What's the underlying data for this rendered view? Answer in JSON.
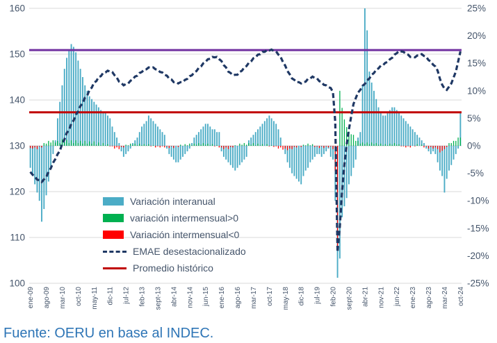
{
  "footer": {
    "text": "Fuente: OERU en base al INDEC."
  },
  "colors": {
    "interanual": "#4BACC6",
    "intermensual_pos": "#00B050",
    "intermensual_neg": "#FF0000",
    "emae_line": "#1F3864",
    "promedio_line": "#C00000",
    "purple_line": "#7030A0",
    "axis_text": "#44546A",
    "gridline": "#D9D9D9",
    "footer_text": "#2E75B6"
  },
  "legend": {
    "items": [
      {
        "label": "Variación interanual",
        "swatch": "bar-blue"
      },
      {
        "label": "variación intermensual>0",
        "swatch": "bar-green"
      },
      {
        "label": "Variación intermensual<0",
        "swatch": "bar-red"
      },
      {
        "label": "EMAE desestacionalizado",
        "swatch": "dashed-navy-line"
      },
      {
        "label": "Promedio histórico",
        "swatch": "solid-darkred-line"
      }
    ]
  },
  "chart_data": {
    "type": "bar",
    "subtype": "combo dual-axis: monthly bars (% right axis) + dashed index line (left axis)",
    "x_unit": "month",
    "n_months": 190,
    "x_range": "ene-09 .. oct-24",
    "x_tick_step": 7,
    "x_tick_labels": [
      "ene-09",
      "ago-09",
      "mar-10",
      "oct-10",
      "may-11",
      "dic-11",
      "jul-12",
      "feb-13",
      "sept-13",
      "abr-14",
      "nov-14",
      "jun-15",
      "ene-16",
      "ago-16",
      "mar-17",
      "oct-17",
      "may-18",
      "dic-18",
      "jul-19",
      "feb-20",
      "sept-20",
      "abr-21",
      "nov-21",
      "jun-22",
      "ene-23",
      "ago-23",
      "mar-24",
      "oct-24"
    ],
    "left_axis": {
      "min": 100,
      "max": 160,
      "step": 10,
      "tick_labels": [
        "160",
        "150",
        "140",
        "130",
        "120",
        "110",
        "100"
      ]
    },
    "right_axis": {
      "min": -25,
      "max": 25,
      "step": 5,
      "tick_labels": [
        "25%",
        "20%",
        "15%",
        "10%",
        "5%",
        "0%",
        "-5%",
        "-10%",
        "-15%",
        "-20%",
        "-25%"
      ]
    },
    "series": [
      {
        "name": "Variación interanual",
        "type": "bar",
        "axis": "right",
        "unit": "%",
        "values": [
          -4.0,
          -5.5,
          -7.0,
          -8.5,
          -10.0,
          -13.8,
          -11.5,
          -9.0,
          -6.5,
          -4.0,
          -1.5,
          1.0,
          5.0,
          8.0,
          11.0,
          14.0,
          16.0,
          17.5,
          18.5,
          18.0,
          17.0,
          15.5,
          14.0,
          12.5,
          11.0,
          10.0,
          9.0,
          8.5,
          8.0,
          7.5,
          7.0,
          6.5,
          6.0,
          6.0,
          5.5,
          5.0,
          3.5,
          2.5,
          1.5,
          0.5,
          -1.0,
          -2.0,
          -1.5,
          -1.0,
          -0.5,
          0.5,
          1.0,
          1.5,
          2.5,
          3.5,
          4.0,
          4.5,
          5.5,
          5.0,
          4.5,
          4.0,
          3.5,
          3.0,
          2.5,
          2.0,
          -0.5,
          -1.5,
          -2.0,
          -2.5,
          -3.0,
          -3.0,
          -2.5,
          -2.0,
          -1.5,
          -1.0,
          -0.5,
          0.5,
          1.5,
          2.0,
          2.5,
          3.0,
          3.5,
          4.0,
          4.0,
          3.5,
          3.0,
          3.0,
          2.5,
          2.5,
          -1.0,
          -2.0,
          -2.5,
          -3.0,
          -3.5,
          -4.0,
          -4.5,
          -4.0,
          -3.5,
          -3.0,
          -2.5,
          -2.0,
          1.0,
          1.5,
          2.0,
          2.5,
          3.0,
          3.5,
          4.0,
          4.5,
          5.0,
          5.5,
          5.0,
          4.5,
          4.0,
          3.0,
          1.5,
          0.0,
          -1.5,
          -3.0,
          -4.0,
          -5.0,
          -5.5,
          -6.0,
          -6.5,
          -7.0,
          -5.5,
          -4.5,
          -4.0,
          -3.0,
          -2.5,
          -2.0,
          -1.5,
          -1.5,
          -2.0,
          -1.5,
          -1.0,
          -0.5,
          -2.0,
          -2.5,
          -10.0,
          -24.0,
          -20.5,
          -13.0,
          -11.0,
          -9.5,
          -7.0,
          -5.5,
          -4.0,
          -2.5,
          1.5,
          2.5,
          11.0,
          25.0,
          21.0,
          13.5,
          11.5,
          10.0,
          8.5,
          7.0,
          6.0,
          5.5,
          5.5,
          6.0,
          6.5,
          7.0,
          7.0,
          6.5,
          6.0,
          5.5,
          5.0,
          4.5,
          4.0,
          3.5,
          3.0,
          2.5,
          2.0,
          1.5,
          1.0,
          0.5,
          -0.5,
          -1.0,
          -1.5,
          -1.0,
          -1.5,
          -3.0,
          -4.5,
          -5.5,
          -8.5,
          -6.0,
          -4.5,
          -3.5,
          -2.5,
          -1.5,
          -0.5,
          6.0
        ]
      },
      {
        "name": "Variación intermensual",
        "type": "bar",
        "axis": "right",
        "unit": "%",
        "positive_legend": "variación intermensual>0",
        "negative_legend": "Variación intermensual<0",
        "values": [
          -0.4,
          -0.5,
          -0.3,
          -0.6,
          -0.1,
          -0.3,
          0.5,
          0.4,
          0.9,
          0.6,
          1.0,
          0.6,
          0.9,
          0.5,
          1.2,
          0.7,
          1.1,
          0.5,
          1.0,
          0.5,
          1.0,
          0.5,
          0.9,
          0.4,
          0.9,
          0.4,
          0.8,
          0.4,
          0.8,
          0.2,
          0.6,
          0.1,
          0.5,
          0.1,
          0.3,
          -0.1,
          -0.1,
          -0.5,
          -0.3,
          -0.6,
          -0.2,
          -0.3,
          0.2,
          0.1,
          0.4,
          0.2,
          0.4,
          0.1,
          0.4,
          0.1,
          0.3,
          0.1,
          0.3,
          -0.1,
          0.1,
          -0.3,
          -0.1,
          -0.3,
          -0.1,
          -0.3,
          -0.1,
          -0.4,
          -0.1,
          -0.4,
          0.0,
          -0.2,
          0.2,
          0.0,
          0.3,
          0.1,
          0.4,
          0.1,
          0.4,
          0.2,
          0.5,
          0.2,
          0.5,
          0.2,
          0.4,
          0.1,
          0.3,
          -0.1,
          0.1,
          -0.3,
          -0.3,
          -0.6,
          -0.3,
          -0.6,
          -0.2,
          -0.3,
          0.1,
          0.0,
          0.4,
          0.2,
          0.5,
          0.2,
          0.5,
          0.2,
          0.5,
          0.1,
          0.4,
          0.1,
          0.3,
          0.0,
          0.3,
          -0.1,
          0.1,
          -0.2,
          -0.1,
          -0.5,
          -0.3,
          -0.7,
          -0.5,
          -0.8,
          -0.5,
          -0.6,
          -0.2,
          -0.3,
          0.0,
          -0.2,
          0.2,
          0.1,
          0.4,
          0.1,
          0.3,
          -0.2,
          -0.1,
          -0.4,
          -0.1,
          -0.4,
          -0.1,
          -0.3,
          -0.1,
          -0.6,
          -4.6,
          -19.0,
          10.0,
          6.9,
          4.8,
          3.4,
          2.6,
          2.1,
          2.0,
          0.9,
          0.9,
          0.4,
          0.6,
          0.3,
          0.6,
          0.3,
          0.6,
          0.3,
          0.5,
          0.2,
          0.4,
          0.1,
          0.3,
          0.1,
          0.4,
          0.2,
          0.5,
          0.2,
          0.3,
          -0.1,
          -0.1,
          -0.3,
          -0.1,
          -0.3,
          0.0,
          -0.1,
          0.3,
          0.0,
          0.2,
          -0.3,
          -0.1,
          -0.5,
          -0.2,
          -0.5,
          -0.3,
          -0.6,
          -1.2,
          -0.9,
          -0.6,
          -0.2,
          0.5,
          0.5,
          0.9,
          0.9,
          1.5,
          1.5
        ]
      },
      {
        "name": "EMAE desestacionalizado",
        "type": "line",
        "style": "dashed",
        "axis": "left",
        "unit": "index",
        "values": [
          124.3,
          123.7,
          123.3,
          122.6,
          122.5,
          122.1,
          122.7,
          123.2,
          124.3,
          125.1,
          126.3,
          127.1,
          128.2,
          128.9,
          130.5,
          131.4,
          132.8,
          133.5,
          134.8,
          135.5,
          136.8,
          137.5,
          138.7,
          139.3,
          140.5,
          141.0,
          142.2,
          142.7,
          143.8,
          144.1,
          145.0,
          145.2,
          145.9,
          146.0,
          146.4,
          146.2,
          146.1,
          145.4,
          144.9,
          144.0,
          143.7,
          143.2,
          143.5,
          143.6,
          144.2,
          144.5,
          145.1,
          145.3,
          145.9,
          146.1,
          146.6,
          146.7,
          147.1,
          147.0,
          147.1,
          146.7,
          146.6,
          146.1,
          146.0,
          145.5,
          145.3,
          144.7,
          144.5,
          143.9,
          143.9,
          143.6,
          143.9,
          143.9,
          144.4,
          144.6,
          145.2,
          145.4,
          146.0,
          146.3,
          147.0,
          147.3,
          148.0,
          148.3,
          148.9,
          149.0,
          149.4,
          149.3,
          149.4,
          148.9,
          148.5,
          147.6,
          147.1,
          146.2,
          145.9,
          145.4,
          145.5,
          145.5,
          146.1,
          146.4,
          147.1,
          147.4,
          148.1,
          148.4,
          149.1,
          149.3,
          149.9,
          150.0,
          150.5,
          150.5,
          150.9,
          150.8,
          151.0,
          150.7,
          150.6,
          149.9,
          149.4,
          148.3,
          147.5,
          146.3,
          145.6,
          144.7,
          144.4,
          143.9,
          143.9,
          143.6,
          143.9,
          144.0,
          144.6,
          144.7,
          145.1,
          144.8,
          144.7,
          144.1,
          143.9,
          143.3,
          143.2,
          142.8,
          142.6,
          141.7,
          135.2,
          106.8,
          112.4,
          120.1,
          125.9,
          130.2,
          133.6,
          136.4,
          139.1,
          140.4,
          141.6,
          142.2,
          143.1,
          143.5,
          144.3,
          144.7,
          145.5,
          145.9,
          146.6,
          146.9,
          147.5,
          147.6,
          148.1,
          148.3,
          148.9,
          149.2,
          149.9,
          150.2,
          150.7,
          150.6,
          150.5,
          150.1,
          149.9,
          149.4,
          149.4,
          149.3,
          149.7,
          149.7,
          150.0,
          149.6,
          149.4,
          148.7,
          148.4,
          147.7,
          147.3,
          146.4,
          144.6,
          143.3,
          142.5,
          142.2,
          142.9,
          143.6,
          144.9,
          146.2,
          148.4,
          150.6
        ]
      }
    ],
    "reference_lines": [
      {
        "name": "Promedio histórico",
        "axis": "left",
        "value": 137.3
      },
      {
        "name": "línea púrpura (nivel actual)",
        "axis": "left",
        "value": 150.9
      }
    ]
  }
}
